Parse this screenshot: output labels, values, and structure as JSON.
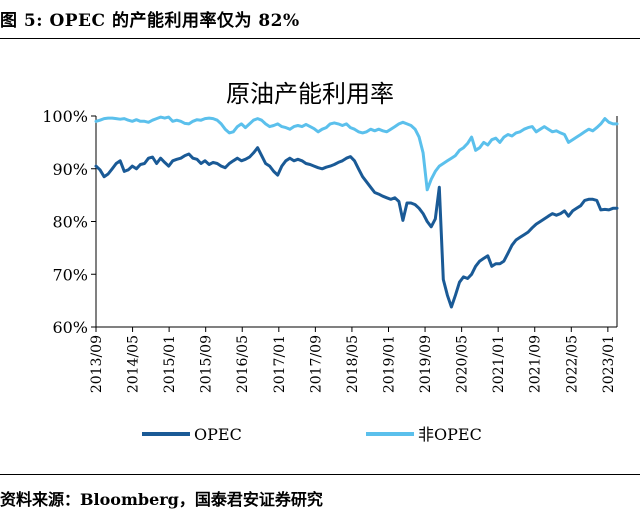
{
  "figure": {
    "caption": "图 5: OPEC 的产能利用率仅为 82%",
    "source": "资料来源：Bloomberg，国泰君安证券研究"
  },
  "colors": {
    "opec": "#1a5a96",
    "non_opec": "#5bc0ec"
  },
  "chart_data": {
    "type": "line",
    "title": "原油产能利用率",
    "xlabel": "",
    "ylabel": "",
    "ylim": [
      60,
      100
    ],
    "y_ticks": [
      "60%",
      "70%",
      "80%",
      "90%",
      "100%"
    ],
    "y_tick_values": [
      60,
      70,
      80,
      90,
      100
    ],
    "x_ticks": [
      "2013/09",
      "2014/05",
      "2015/01",
      "2015/09",
      "2016/05",
      "2017/01",
      "2017/09",
      "2018/05",
      "2019/01",
      "2019/09",
      "2020/05",
      "2021/01",
      "2021/09",
      "2022/05",
      "2023/01"
    ],
    "x_start": "2013/09",
    "x_end": "2023/03",
    "legend_placement": "bottom",
    "grid": false,
    "series": [
      {
        "name": "OPEC",
        "key": "opec",
        "values": [
          90.5,
          89.8,
          88.5,
          89.0,
          90.0,
          91.0,
          91.5,
          89.5,
          89.8,
          90.5,
          90.0,
          90.8,
          91.0,
          92.0,
          92.2,
          91.0,
          92.0,
          91.2,
          90.5,
          91.5,
          91.8,
          92.0,
          92.5,
          92.8,
          92.0,
          91.8,
          91.0,
          91.5,
          90.8,
          91.2,
          91.0,
          90.5,
          90.2,
          91.0,
          91.5,
          92.0,
          91.5,
          91.8,
          92.2,
          93.0,
          94.0,
          92.5,
          91.0,
          90.5,
          89.5,
          88.8,
          90.5,
          91.5,
          92.0,
          91.5,
          91.8,
          91.5,
          91.0,
          90.8,
          90.5,
          90.2,
          90.0,
          90.3,
          90.5,
          90.8,
          91.2,
          91.5,
          92.0,
          92.3,
          91.5,
          90.0,
          88.5,
          87.5,
          86.5,
          85.5,
          85.2,
          84.8,
          84.5,
          84.2,
          84.5,
          83.8,
          80.2,
          83.5,
          83.5,
          83.2,
          82.5,
          81.5,
          80.0,
          79.0,
          80.5,
          86.5,
          69.0,
          66.0,
          63.8,
          66.0,
          68.5,
          69.5,
          69.2,
          70.0,
          71.5,
          72.5,
          73.0,
          73.5,
          71.5,
          72.0,
          72.0,
          72.5,
          74.0,
          75.5,
          76.5,
          77.0,
          77.5,
          78.0,
          78.8,
          79.5,
          80.0,
          80.5,
          81.0,
          81.5,
          81.2,
          81.5,
          82.0,
          81.0,
          82.0,
          82.5,
          83.0,
          84.0,
          84.2,
          84.2,
          84.0,
          82.2,
          82.3,
          82.2,
          82.5,
          82.5
        ]
      },
      {
        "name": "非OPEC",
        "key": "non_opec",
        "values": [
          99.0,
          99.2,
          99.5,
          99.6,
          99.6,
          99.5,
          99.4,
          99.5,
          99.2,
          99.0,
          99.3,
          99.0,
          99.0,
          98.8,
          99.2,
          99.5,
          99.8,
          99.6,
          99.8,
          99.0,
          99.2,
          99.0,
          98.6,
          98.5,
          99.0,
          99.3,
          99.2,
          99.5,
          99.6,
          99.5,
          99.2,
          98.5,
          97.5,
          96.8,
          97.0,
          98.0,
          98.5,
          97.8,
          98.5,
          99.2,
          99.5,
          99.2,
          98.5,
          98.0,
          98.2,
          98.5,
          98.0,
          97.8,
          97.5,
          98.0,
          98.2,
          98.0,
          98.4,
          98.0,
          97.6,
          97.0,
          97.5,
          97.8,
          98.5,
          98.7,
          98.5,
          98.2,
          98.5,
          97.8,
          97.5,
          97.0,
          96.8,
          97.0,
          97.5,
          97.2,
          97.5,
          97.2,
          97.0,
          97.5,
          98.0,
          98.5,
          98.8,
          98.5,
          98.2,
          97.5,
          96.0,
          93.0,
          86.0,
          88.0,
          89.5,
          90.5,
          91.0,
          91.5,
          92.0,
          92.5,
          93.5,
          94.0,
          94.8,
          96.0,
          93.5,
          94.0,
          95.0,
          94.5,
          95.5,
          95.8,
          95.0,
          96.0,
          96.5,
          96.2,
          96.8,
          97.0,
          97.5,
          97.8,
          98.0,
          97.0,
          97.5,
          98.0,
          97.5,
          97.0,
          97.2,
          96.8,
          96.5,
          95.0,
          95.5,
          96.0,
          96.5,
          97.0,
          97.5,
          97.2,
          97.8,
          98.5,
          99.5,
          98.8,
          98.5,
          98.5
        ]
      }
    ]
  }
}
